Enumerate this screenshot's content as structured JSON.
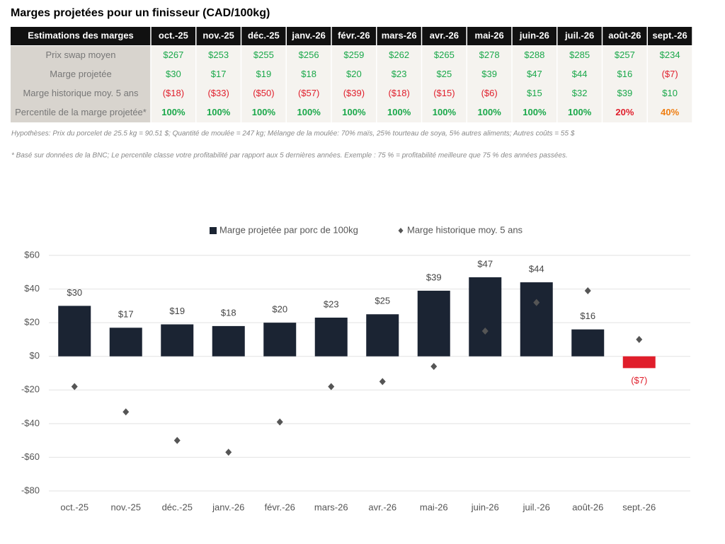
{
  "title": "Marges projetées pour un finisseur (CAD/100kg)",
  "table": {
    "header": "Estimations des marges",
    "columns": [
      "oct.-25",
      "nov.-25",
      "déc.-25",
      "janv.-26",
      "févr.-26",
      "mars-26",
      "avr.-26",
      "mai-26",
      "juin-26",
      "juil.-26",
      "août-26",
      "sept.-26"
    ],
    "rows": [
      {
        "label": "Prix swap moyen",
        "cells": [
          "$267",
          "$253",
          "$255",
          "$256",
          "$259",
          "$262",
          "$265",
          "$278",
          "$288",
          "$285",
          "$257",
          "$234"
        ],
        "colors": [
          "#1aa84a",
          "#1aa84a",
          "#1aa84a",
          "#1aa84a",
          "#1aa84a",
          "#1aa84a",
          "#1aa84a",
          "#1aa84a",
          "#1aa84a",
          "#1aa84a",
          "#1aa84a",
          "#1aa84a"
        ]
      },
      {
        "label": "Marge projetée",
        "cells": [
          "$30",
          "$17",
          "$19",
          "$18",
          "$20",
          "$23",
          "$25",
          "$39",
          "$47",
          "$44",
          "$16",
          "($7)"
        ],
        "colors": [
          "#1aa84a",
          "#1aa84a",
          "#1aa84a",
          "#1aa84a",
          "#1aa84a",
          "#1aa84a",
          "#1aa84a",
          "#1aa84a",
          "#1aa84a",
          "#1aa84a",
          "#1aa84a",
          "#e01e2b"
        ]
      },
      {
        "label": "Marge historique moy. 5 ans",
        "cells": [
          "($18)",
          "($33)",
          "($50)",
          "($57)",
          "($39)",
          "($18)",
          "($15)",
          "($6)",
          "$15",
          "$32",
          "$39",
          "$10"
        ],
        "colors": [
          "#e01e2b",
          "#e01e2b",
          "#e01e2b",
          "#e01e2b",
          "#e01e2b",
          "#e01e2b",
          "#e01e2b",
          "#e01e2b",
          "#1aa84a",
          "#1aa84a",
          "#1aa84a",
          "#1aa84a"
        ]
      },
      {
        "label": "Percentile de la marge projetée*",
        "cells": [
          "100%",
          "100%",
          "100%",
          "100%",
          "100%",
          "100%",
          "100%",
          "100%",
          "100%",
          "100%",
          "20%",
          "40%"
        ],
        "colors": [
          "#1aa84a",
          "#1aa84a",
          "#1aa84a",
          "#1aa84a",
          "#1aa84a",
          "#1aa84a",
          "#1aa84a",
          "#1aa84a",
          "#1aa84a",
          "#1aa84a",
          "#e01e2b",
          "#ef7d10"
        ]
      }
    ]
  },
  "notes": [
    "Hypothèses: Prix du porcelet de 25.5 kg = 90.51 $; Quantité de moulée = 247 kg; Mélange de la moulée: 70% maïs, 25% tourteau de soya, 5% autres aliments; Autres coûts = 55 $",
    "* Basé sur données de la BNC; Le percentile classe votre profitabilité par rapport aux 5 dernières années. Exemple : 75 % = profitabilité meilleure que 75 % des années passées."
  ],
  "chart_data": {
    "type": "bar",
    "categories": [
      "oct.-25",
      "nov.-25",
      "déc.-25",
      "janv.-26",
      "févr.-26",
      "mars-26",
      "avr.-26",
      "mai-26",
      "juin-26",
      "juil.-26",
      "août-26",
      "sept.-26"
    ],
    "series": [
      {
        "name": "Marge projetée par porc de 100kg",
        "type": "bar",
        "color": "#1b2433",
        "negative_color": "#e01e2b",
        "values": [
          30,
          17,
          19,
          18,
          20,
          23,
          25,
          39,
          47,
          44,
          16,
          -7
        ],
        "value_labels": [
          "$30",
          "$17",
          "$19",
          "$18",
          "$20",
          "$23",
          "$25",
          "$39",
          "$47",
          "$44",
          "$16",
          "($7)"
        ]
      },
      {
        "name": "Marge historique moy. 5 ans",
        "type": "scatter",
        "color": "#555555",
        "values": [
          -18,
          -33,
          -50,
          -57,
          -39,
          -18,
          -15,
          -6,
          15,
          32,
          39,
          10
        ]
      }
    ],
    "ylim": [
      -80,
      60
    ],
    "yticks": [
      {
        "value": -80,
        "label": "-$80"
      },
      {
        "value": -60,
        "label": "-$60"
      },
      {
        "value": -40,
        "label": "-$40"
      },
      {
        "value": -20,
        "label": "-$20"
      },
      {
        "value": 0,
        "label": "$0"
      },
      {
        "value": 20,
        "label": "$20"
      },
      {
        "value": 40,
        "label": "$40"
      },
      {
        "value": 60,
        "label": "$60"
      }
    ],
    "grid": true,
    "legend": "top"
  }
}
